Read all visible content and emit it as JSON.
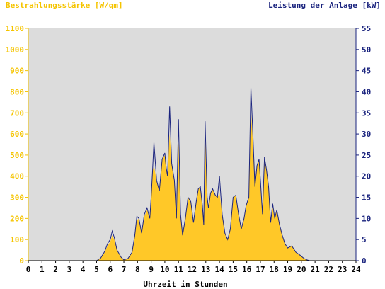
{
  "chart_data": {
    "type": "area",
    "left_axis_title": "Bestrahlungsstärke [W/qm]",
    "right_axis_title": "Leistung der Anlage [kW]",
    "xlabel": "Uhrzeit in Stunden",
    "xlim": [
      0,
      24
    ],
    "ylim_left": [
      0,
      1100
    ],
    "ylim_right": [
      0,
      55
    ],
    "x_ticks": [
      "0",
      "1",
      "2",
      "3",
      "4",
      "5",
      "6",
      "7",
      "8",
      "9",
      "10",
      "11",
      "12",
      "13",
      "14",
      "15",
      "16",
      "17",
      "18",
      "19",
      "20",
      "21",
      "22",
      "23",
      "24"
    ],
    "y_left_ticks": [
      "0",
      "100",
      "200",
      "300",
      "400",
      "500",
      "600",
      "700",
      "800",
      "900",
      "1000",
      "1100"
    ],
    "y_right_ticks": [
      "0",
      "5",
      "10",
      "15",
      "20",
      "25",
      "30",
      "35",
      "40",
      "45",
      "50",
      "55"
    ],
    "colors": {
      "irradiance": "#ffc828",
      "power": "#1a237e",
      "plot_bg": "#dcdcdc",
      "left_axis": "#f5c400",
      "right_axis": "#1a237e"
    },
    "series": [
      {
        "name": "Bestrahlungsstärke",
        "axis": "left",
        "x": [
          0,
          5.0,
          5.3,
          5.6,
          5.8,
          6.0,
          6.15,
          6.3,
          6.5,
          6.8,
          7.0,
          7.3,
          7.6,
          7.8,
          7.95,
          8.1,
          8.3,
          8.5,
          8.7,
          8.9,
          9.0,
          9.1,
          9.2,
          9.4,
          9.6,
          9.8,
          10.0,
          10.1,
          10.2,
          10.35,
          10.5,
          10.7,
          10.85,
          11.0,
          11.15,
          11.3,
          11.5,
          11.7,
          11.9,
          12.1,
          12.3,
          12.45,
          12.6,
          12.75,
          12.85,
          12.95,
          13.1,
          13.2,
          13.35,
          13.5,
          13.7,
          13.85,
          14.0,
          14.2,
          14.4,
          14.6,
          14.8,
          15.0,
          15.2,
          15.4,
          15.6,
          15.8,
          15.95,
          16.05,
          16.15,
          16.3,
          16.45,
          16.6,
          16.75,
          16.9,
          17.0,
          17.15,
          17.3,
          17.45,
          17.6,
          17.75,
          17.9,
          18.05,
          18.2,
          18.4,
          18.6,
          18.8,
          19.0,
          19.3,
          19.6,
          19.9,
          20.2,
          20.4,
          20.6,
          24
        ],
        "y": [
          0,
          0,
          10,
          40,
          70,
          90,
          120,
          100,
          50,
          15,
          5,
          10,
          40,
          120,
          190,
          200,
          130,
          210,
          240,
          200,
          300,
          420,
          450,
          380,
          330,
          480,
          500,
          450,
          400,
          600,
          460,
          380,
          200,
          560,
          220,
          120,
          200,
          300,
          280,
          180,
          280,
          340,
          350,
          260,
          170,
          600,
          300,
          250,
          320,
          340,
          310,
          300,
          320,
          220,
          130,
          100,
          150,
          300,
          310,
          220,
          150,
          200,
          260,
          280,
          300,
          720,
          560,
          350,
          450,
          480,
          380,
          220,
          470,
          430,
          350,
          180,
          250,
          200,
          240,
          170,
          120,
          80,
          60,
          70,
          40,
          25,
          10,
          5,
          0,
          0
        ]
      },
      {
        "name": "Leistung",
        "axis": "right",
        "x": [
          0,
          5.0,
          5.3,
          5.6,
          5.8,
          6.0,
          6.15,
          6.3,
          6.5,
          6.8,
          7.0,
          7.3,
          7.6,
          7.8,
          7.95,
          8.1,
          8.3,
          8.5,
          8.7,
          8.9,
          9.0,
          9.1,
          9.2,
          9.4,
          9.6,
          9.8,
          10.0,
          10.1,
          10.2,
          10.35,
          10.5,
          10.7,
          10.85,
          11.0,
          11.15,
          11.3,
          11.5,
          11.7,
          11.9,
          12.1,
          12.3,
          12.45,
          12.6,
          12.75,
          12.85,
          12.95,
          13.1,
          13.2,
          13.35,
          13.5,
          13.7,
          13.85,
          14.0,
          14.2,
          14.4,
          14.6,
          14.8,
          15.0,
          15.2,
          15.4,
          15.6,
          15.8,
          15.95,
          16.05,
          16.15,
          16.3,
          16.45,
          16.6,
          16.75,
          16.9,
          17.0,
          17.15,
          17.3,
          17.45,
          17.6,
          17.75,
          17.9,
          18.05,
          18.2,
          18.4,
          18.6,
          18.8,
          19.0,
          19.3,
          19.6,
          19.9,
          20.2,
          20.4,
          20.6,
          24
        ],
        "y": [
          0,
          0,
          0.6,
          2.2,
          4,
          5,
          7,
          5.5,
          2.5,
          0.8,
          0.2,
          0.5,
          2,
          6,
          10.5,
          10,
          6.5,
          11,
          12.5,
          10,
          15,
          21.5,
          28,
          19,
          16.5,
          24,
          25.5,
          22,
          20,
          36.5,
          23,
          19,
          10,
          33.5,
          11,
          6,
          10,
          15,
          14,
          9,
          14,
          17,
          17.5,
          13,
          8.5,
          33,
          15,
          12.5,
          16,
          17,
          15.5,
          15,
          20,
          11,
          6.5,
          5,
          7.5,
          15,
          15.5,
          11,
          7.5,
          10,
          13,
          14,
          15,
          41,
          30,
          17.5,
          22.5,
          24,
          19,
          11,
          24.5,
          21.5,
          17.5,
          9,
          13.5,
          10,
          12,
          8.5,
          6,
          4,
          3,
          3.5,
          2,
          1.3,
          0.5,
          0.2,
          0,
          0
        ]
      }
    ]
  }
}
